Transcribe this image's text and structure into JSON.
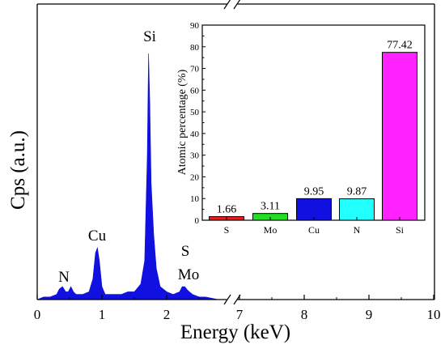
{
  "chart_data": [
    {
      "type": "area",
      "xlabel": "Energy (keV)",
      "ylabel": "Cps (a.u.)",
      "xlim": [
        0,
        10
      ],
      "axis_break": [
        2.8,
        7
      ],
      "xticks": [
        "0",
        "1",
        "2",
        "7",
        "8",
        "9",
        "10"
      ],
      "color": "#1010e0",
      "peak_labels": [
        "N",
        "Cu",
        "Si",
        "S",
        "Mo"
      ],
      "spectrum": {
        "x": [
          0.0,
          0.1,
          0.2,
          0.3,
          0.34,
          0.39,
          0.44,
          0.48,
          0.52,
          0.56,
          0.6,
          0.7,
          0.8,
          0.86,
          0.9,
          0.93,
          0.96,
          1.0,
          1.05,
          1.1,
          1.2,
          1.3,
          1.4,
          1.5,
          1.6,
          1.66,
          1.7,
          1.72,
          1.74,
          1.76,
          1.8,
          1.84,
          1.9,
          2.0,
          2.1,
          2.2,
          2.24,
          2.28,
          2.31,
          2.35,
          2.4,
          2.5,
          2.6,
          2.8
        ],
        "y": [
          0.0,
          0.01,
          0.01,
          0.02,
          0.04,
          0.05,
          0.03,
          0.03,
          0.05,
          0.03,
          0.02,
          0.02,
          0.03,
          0.08,
          0.18,
          0.2,
          0.15,
          0.05,
          0.02,
          0.02,
          0.02,
          0.02,
          0.03,
          0.03,
          0.06,
          0.15,
          0.55,
          0.95,
          0.75,
          0.45,
          0.25,
          0.12,
          0.05,
          0.03,
          0.02,
          0.03,
          0.05,
          0.05,
          0.04,
          0.03,
          0.02,
          0.01,
          0.01,
          0.0
        ]
      }
    },
    {
      "type": "bar",
      "ylabel": "Atomic percentage (%)",
      "ylim": [
        0,
        90
      ],
      "yticks": [
        "0",
        "10",
        "20",
        "30",
        "40",
        "50",
        "60",
        "70",
        "80",
        "90"
      ],
      "categories": [
        "S",
        "Mo",
        "Cu",
        "N",
        "Si"
      ],
      "values": [
        1.66,
        3.11,
        9.95,
        9.87,
        77.42
      ],
      "value_labels": [
        "1.66",
        "3.11",
        "9.95",
        "9.87",
        "77.42"
      ],
      "colors": [
        "#e02020",
        "#22dd22",
        "#1010e0",
        "#22ffff",
        "#ff22ff"
      ]
    }
  ]
}
